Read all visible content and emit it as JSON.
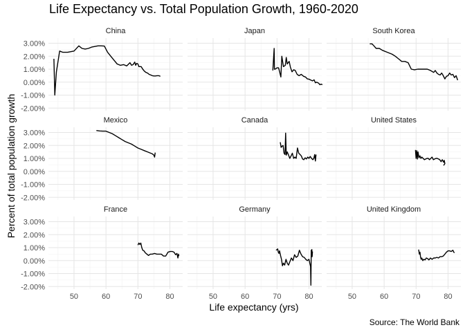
{
  "chart_data": {
    "type": "line",
    "title": "Life Expectancy vs. Total Population Growth, 1960-2020",
    "xlabel": "Life expectancy (yrs)",
    "ylabel": "Percent of total population growth",
    "caption": "Source: The World Bank",
    "xlim": [
      42,
      84
    ],
    "ylim": [
      -2.2,
      3.4
    ],
    "x_ticks": [
      50,
      60,
      70,
      80
    ],
    "y_ticks": [
      -2,
      -1,
      0,
      1,
      2,
      3
    ],
    "y_tick_labels": [
      "-2.00%",
      "-1.00%",
      "0.00%",
      "1.00%",
      "2.00%",
      "3.00%"
    ],
    "grid": true,
    "facets": [
      {
        "name": "China",
        "x": [
          43.7,
          44.0,
          44.5,
          45.5,
          46.5,
          48.0,
          50.0,
          51.5,
          52.5,
          53.5,
          54.5,
          55.5,
          56.5,
          57.5,
          58.5,
          59.5,
          60.5,
          61.5,
          62.5,
          63.5,
          64.5,
          65.5,
          66.5,
          67.5,
          68.0,
          68.5,
          69.0,
          69.3,
          69.6,
          70.0,
          70.3,
          70.6,
          71.0,
          71.5,
          72.0,
          72.5,
          73.0,
          73.5,
          74.0,
          74.5,
          75.0,
          75.5,
          76.0,
          76.5,
          77.0
        ],
        "y": [
          1.8,
          -1.0,
          0.8,
          2.4,
          2.3,
          2.3,
          2.4,
          2.8,
          2.6,
          2.55,
          2.6,
          2.7,
          2.75,
          2.8,
          2.8,
          2.78,
          2.3,
          2.0,
          1.7,
          1.4,
          1.3,
          1.35,
          1.25,
          1.5,
          1.3,
          1.35,
          1.55,
          1.3,
          1.45,
          1.4,
          1.2,
          1.2,
          1.2,
          1.0,
          0.85,
          0.75,
          0.7,
          0.6,
          0.55,
          0.5,
          0.48,
          0.48,
          0.5,
          0.5,
          0.45
        ]
      },
      {
        "name": "Japan",
        "x": [
          68.7,
          69.1,
          69.2,
          69.4,
          70.0,
          70.5,
          70.9,
          71.2,
          71.5,
          72.0,
          72.3,
          72.6,
          72.9,
          73.2,
          73.5,
          73.8,
          74.2,
          74.7,
          75.2,
          75.7,
          76.3,
          76.9,
          77.6,
          78.3,
          78.9,
          79.5,
          80.1,
          80.6,
          81.1,
          81.6,
          82.0,
          82.4,
          82.8,
          83.1,
          83.4,
          83.8,
          84.2
        ],
        "y": [
          0.9,
          2.6,
          1.0,
          1.0,
          1.1,
          1.1,
          0.7,
          0.4,
          2.0,
          1.2,
          1.25,
          1.3,
          1.9,
          1.4,
          1.5,
          1.6,
          1.15,
          0.8,
          0.95,
          0.9,
          0.6,
          0.5,
          0.6,
          0.45,
          0.4,
          0.25,
          0.22,
          0.15,
          0.1,
          0.18,
          -0.05,
          0.0,
          -0.05,
          -0.1,
          -0.2,
          -0.15,
          -0.2
        ]
      },
      {
        "name": "South Korea",
        "x": [
          55.5,
          56.2,
          56.8,
          57.5,
          58.5,
          59.5,
          61.0,
          62.5,
          63.5,
          64.5,
          65.5,
          66.5,
          67.5,
          68.5,
          69.5,
          70.5,
          71.5,
          72.5,
          73.5,
          74.5,
          75.5,
          76.0,
          76.5,
          77.0,
          77.5,
          78.0,
          78.5,
          79.0,
          79.5,
          80.0,
          80.5,
          81.0,
          81.5,
          82.0,
          82.5,
          83.0
        ],
        "y": [
          2.95,
          2.95,
          2.8,
          2.6,
          2.6,
          2.45,
          2.3,
          2.15,
          2.0,
          1.8,
          1.6,
          1.6,
          1.5,
          1.0,
          0.95,
          1.0,
          1.0,
          1.0,
          1.0,
          0.9,
          0.75,
          0.9,
          0.7,
          0.6,
          0.55,
          0.7,
          0.5,
          0.25,
          0.45,
          0.5,
          0.7,
          0.55,
          0.6,
          0.35,
          0.5,
          0.15
        ]
      },
      {
        "name": "Mexico",
        "x": [
          57.0,
          58.0,
          59.0,
          60.0,
          61.0,
          62.0,
          63.0,
          64.0,
          65.0,
          66.0,
          67.0,
          68.0,
          69.0,
          70.0,
          71.0,
          72.0,
          73.0,
          74.0,
          74.5,
          75.0,
          75.2,
          75.4
        ],
        "y": [
          3.15,
          3.12,
          3.1,
          3.1,
          3.0,
          2.9,
          2.75,
          2.6,
          2.45,
          2.3,
          2.2,
          2.1,
          1.95,
          1.8,
          1.7,
          1.6,
          1.5,
          1.4,
          1.35,
          1.25,
          1.1,
          1.45
        ]
      },
      {
        "name": "Canada",
        "x": [
          71.0,
          71.3,
          71.6,
          71.9,
          72.2,
          72.5,
          72.7,
          72.9,
          73.2,
          73.6,
          74.0,
          74.4,
          74.8,
          75.2,
          75.6,
          76.0,
          76.4,
          76.8,
          77.2,
          77.6,
          78.0,
          78.4,
          78.8,
          79.2,
          79.6,
          80.0,
          80.4,
          80.8,
          81.2,
          81.5,
          81.8,
          82.0,
          82.2
        ],
        "y": [
          2.25,
          1.85,
          1.95,
          2.0,
          1.4,
          1.3,
          2.95,
          1.25,
          1.5,
          1.25,
          1.0,
          1.2,
          1.4,
          1.0,
          1.1,
          1.0,
          1.8,
          1.4,
          1.3,
          1.2,
          0.95,
          0.9,
          1.05,
          0.95,
          1.1,
          1.0,
          1.15,
          1.0,
          0.9,
          1.0,
          1.3,
          0.8,
          1.3
        ]
      },
      {
        "name": "United States",
        "x": [
          69.8,
          70.0,
          70.2,
          70.4,
          70.6,
          70.9,
          71.2,
          71.5,
          71.8,
          72.2,
          72.6,
          73.0,
          73.4,
          73.8,
          74.2,
          74.6,
          75.0,
          75.4,
          75.8,
          76.2,
          76.6,
          77.0,
          77.4,
          77.8,
          78.2,
          78.6,
          78.8,
          79.0,
          78.6
        ],
        "y": [
          1.65,
          1.0,
          1.6,
          0.95,
          1.5,
          1.05,
          1.2,
          1.0,
          1.1,
          1.0,
          0.9,
          0.95,
          1.0,
          1.0,
          0.9,
          1.0,
          1.1,
          0.9,
          0.95,
          1.0,
          1.0,
          0.95,
          0.9,
          0.75,
          0.9,
          0.7,
          0.85,
          0.6,
          0.45
        ]
      },
      {
        "name": "France",
        "x": [
          70.0,
          70.3,
          70.6,
          70.9,
          71.2,
          71.5,
          71.9,
          72.3,
          72.8,
          73.3,
          73.9,
          74.5,
          75.2,
          75.9,
          76.6,
          77.3,
          78.0,
          78.7,
          79.4,
          80.1,
          80.8,
          81.3,
          81.8,
          82.2,
          82.5,
          82.7,
          82.8
        ],
        "y": [
          1.2,
          1.35,
          1.25,
          1.35,
          1.0,
          0.8,
          0.75,
          0.6,
          0.5,
          0.4,
          0.5,
          0.5,
          0.55,
          0.5,
          0.5,
          0.5,
          0.35,
          0.35,
          0.65,
          0.7,
          0.7,
          0.65,
          0.45,
          0.55,
          0.2,
          0.5,
          0.35
        ]
      },
      {
        "name": "Germany",
        "x": [
          69.7,
          70.0,
          70.2,
          70.4,
          70.6,
          70.8,
          71.1,
          71.4,
          71.7,
          72.0,
          72.4,
          72.8,
          73.2,
          73.6,
          74.0,
          74.5,
          75.0,
          75.5,
          76.0,
          76.5,
          77.0,
          77.5,
          78.0,
          78.5,
          79.0,
          79.5,
          80.0,
          80.3,
          80.5,
          80.6,
          80.7,
          80.8,
          80.9,
          81.0,
          81.1
        ],
        "y": [
          0.8,
          0.85,
          0.9,
          0.65,
          0.55,
          0.75,
          0.4,
          0.1,
          -0.4,
          -0.2,
          -0.35,
          0.1,
          -0.2,
          -0.35,
          -0.1,
          0.2,
          0.0,
          0.45,
          0.25,
          0.35,
          0.8,
          0.5,
          0.3,
          0.25,
          0.1,
          0.0,
          0.1,
          -0.25,
          -0.45,
          -1.9,
          0.8,
          0.3,
          0.85,
          0.3,
          0.7
        ]
      },
      {
        "name": "United Kingdom",
        "x": [
          70.8,
          71.0,
          71.2,
          71.4,
          71.6,
          71.8,
          72.1,
          72.4,
          72.8,
          73.2,
          73.6,
          74.0,
          74.5,
          75.0,
          75.5,
          76.0,
          76.5,
          77.0,
          77.5,
          78.0,
          78.5,
          79.0,
          79.5,
          80.0,
          80.5,
          81.0,
          81.5,
          81.8,
          82.0
        ],
        "y": [
          0.85,
          0.5,
          0.65,
          0.25,
          0.1,
          0.2,
          0.0,
          0.1,
          0.05,
          0.2,
          0.15,
          0.05,
          0.2,
          0.1,
          0.2,
          0.2,
          0.25,
          0.2,
          0.3,
          0.3,
          0.35,
          0.5,
          0.65,
          0.75,
          0.75,
          0.7,
          0.8,
          0.65,
          0.6
        ]
      }
    ]
  }
}
